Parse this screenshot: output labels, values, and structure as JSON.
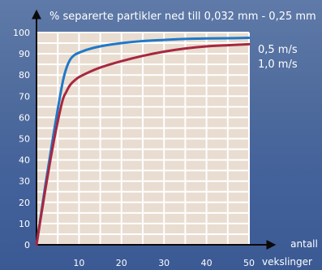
{
  "chart_data": {
    "type": "line",
    "ylabel": "% separerte partikler ned till 0,032 mm - 0,25 mm",
    "xlabel_line1": "antall",
    "xlabel_line2": "vekslinger",
    "xlim": [
      0,
      50
    ],
    "ylim": [
      0,
      100
    ],
    "x_ticks": [
      10,
      20,
      30,
      40,
      50
    ],
    "y_ticks": [
      0,
      10,
      20,
      30,
      40,
      50,
      60,
      70,
      80,
      90,
      100
    ],
    "grid": true,
    "legend_position": "right",
    "series": [
      {
        "name": "0,5 m/s",
        "color": "#1f78c8",
        "x": [
          0,
          2,
          4,
          6,
          7,
          8,
          9,
          10,
          12,
          15,
          20,
          25,
          30,
          35,
          40,
          45,
          50
        ],
        "y": [
          0,
          27,
          52,
          75,
          83,
          87.5,
          89.5,
          90.5,
          92,
          93.5,
          95,
          96,
          96.5,
          97,
          97.2,
          97.3,
          97.5
        ]
      },
      {
        "name": "1,0 m/s",
        "color": "#a8273f",
        "x": [
          0,
          2,
          4,
          6,
          7,
          8,
          9,
          10,
          12,
          15,
          20,
          25,
          30,
          35,
          40,
          45,
          50
        ],
        "y": [
          0,
          25,
          48,
          67,
          72,
          75.5,
          77.5,
          79,
          81,
          83.5,
          86.5,
          89,
          91,
          92.5,
          93.5,
          94,
          94.5
        ]
      }
    ]
  }
}
